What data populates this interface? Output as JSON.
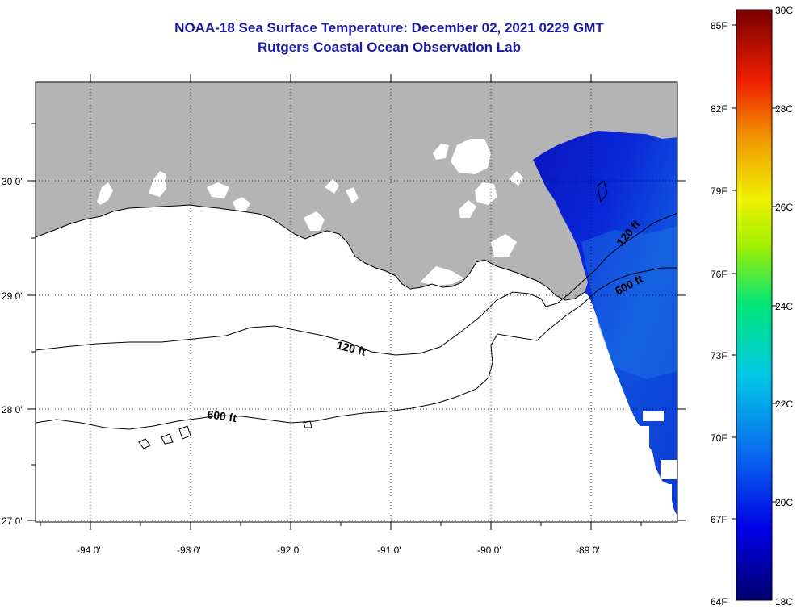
{
  "title_line1": "NOAA-18 Sea Surface Temperature:  December 02, 2021 0229 GMT",
  "title_line2": "Rutgers Coastal Ocean Observation Lab",
  "x_ticks": [
    "-94 0'",
    "-93 0'",
    "-92 0'",
    "-91 0'",
    "-90 0'",
    "-89 0'"
  ],
  "y_ticks": [
    "30 0'",
    "29 0'",
    "28 0'",
    "27 0'"
  ],
  "contour_labels": [
    "120 ft",
    "600 ft",
    "120 ft",
    "600 ft"
  ],
  "colorbar": {
    "fahrenheit": [
      "85F",
      "82F",
      "79F",
      "76F",
      "73F",
      "70F",
      "67F",
      "64F"
    ],
    "celsius": [
      "30C",
      "28C",
      "26C",
      "24C",
      "22C",
      "20C",
      "18C"
    ]
  },
  "colors": {
    "land": "#b4b4b4",
    "title": "#1a1aa6",
    "sst_low": "#0a14b4"
  }
}
